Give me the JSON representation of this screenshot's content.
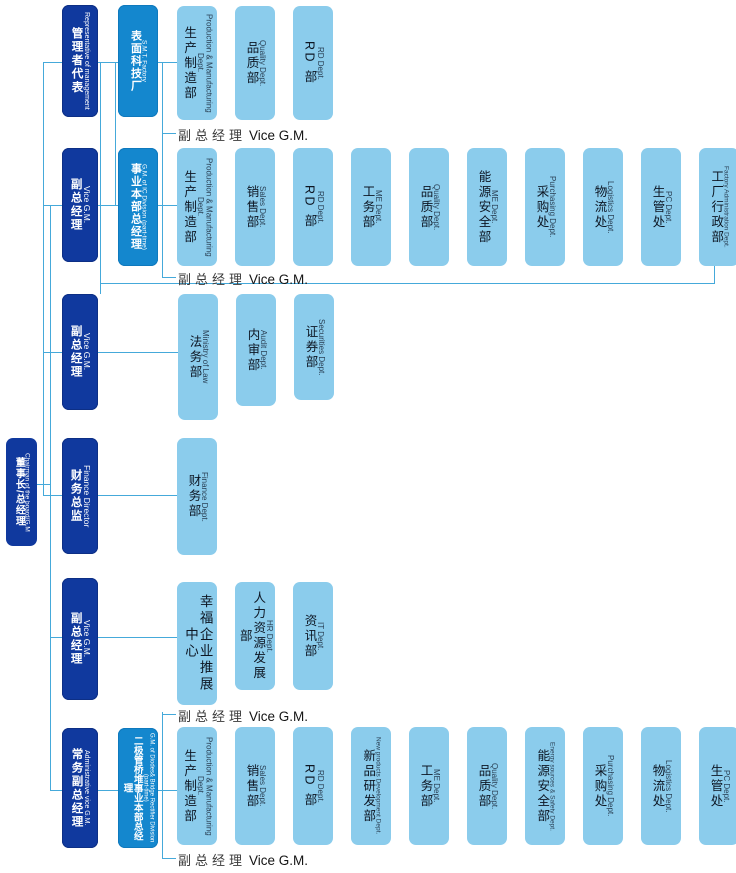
{
  "chairman": {
    "en": "Chairman of the board/G.M",
    "zh": "董事长/总经理"
  },
  "vice_gm_label": {
    "zh": "副总经理",
    "en": "Vice G.M."
  },
  "sections": [
    {
      "executive": {
        "en": "Representative of management",
        "zh": "管理者代表"
      },
      "division": {
        "en": "S.M.T. Factory",
        "zh": "表面科技厂"
      },
      "departments": [
        {
          "en": "Production & Manufacturing Dept.",
          "zh": "生产制造部"
        },
        {
          "en": "Quality Dept.",
          "zh": "品质部"
        },
        {
          "en": "RD Dept.",
          "zh": "RD 部"
        }
      ]
    },
    {
      "executive": {
        "en": "Vice G.M.",
        "zh": "副总经理"
      },
      "division": {
        "en": "G.M. of IC Division (part-time)",
        "zh": "事业本部总经理"
      },
      "departments": [
        {
          "en": "Production & Manufacturing Dept.",
          "zh": "生产制造部"
        },
        {
          "en": "Sales Dept.",
          "zh": "销售部"
        },
        {
          "en": "RD Dept.",
          "zh": "RD 部"
        },
        {
          "en": "ME Dept.",
          "zh": "工务部"
        },
        {
          "en": "Quality Dept.",
          "zh": "品质部"
        },
        {
          "en": "ME Dept.",
          "zh": "能源安全部"
        },
        {
          "en": "Purchasing Dept.",
          "zh": "采购处"
        },
        {
          "en": "Logistics Dept.",
          "zh": "物流处"
        },
        {
          "en": "PC Dept.",
          "zh": "生管处"
        },
        {
          "en": "Factory Administration Dept.",
          "zh": "工厂行政部"
        }
      ]
    },
    {
      "executive": {
        "en": "Vice G.M.",
        "zh": "副总经理"
      },
      "departments": [
        {
          "en": "Ministry of Law",
          "zh": "法务部"
        },
        {
          "en": "Audit Dept.",
          "zh": "内审部"
        },
        {
          "en": "Securities Dept.",
          "zh": "证券部"
        }
      ]
    },
    {
      "executive": {
        "en": "Finance Director",
        "zh": "财务总监"
      },
      "departments": [
        {
          "en": "Finance Dept.",
          "zh": "财务部"
        }
      ]
    },
    {
      "executive": {
        "en": "Vice G.M.",
        "zh": "副总经理"
      },
      "departments": [
        {
          "en": "",
          "zh": "幸福企业推展中心"
        },
        {
          "en": "HR Dept.",
          "zh": "人力资源发展部"
        },
        {
          "en": "IT Dept.",
          "zh": "资讯部"
        }
      ]
    },
    {
      "executive": {
        "en": "Administrative vice G.M.",
        "zh": "常务副总经理"
      },
      "division": {
        "en": "G.M. of Diodes& Bridge Rectifier Division (part-time)",
        "zh": "二极管桥堆事业本部总经理"
      },
      "departments": [
        {
          "en": "Production & Manufacturing Dept.",
          "zh": "生产制造部"
        },
        {
          "en": "Sales Dept.",
          "zh": "销售部"
        },
        {
          "en": "RD Dept.",
          "zh": "RD 部"
        },
        {
          "en": "New products Development Dept.",
          "zh": "新品研发部"
        },
        {
          "en": "ME Dept.",
          "zh": "工务部"
        },
        {
          "en": "Quality Dept.",
          "zh": "品质部"
        },
        {
          "en": "Energy sources & Safety Dept.",
          "zh": "能源安全部"
        },
        {
          "en": "Purchasing Dept.",
          "zh": "采购处"
        },
        {
          "en": "Logistics Dept.",
          "zh": "物流处"
        },
        {
          "en": "PC Dept.",
          "zh": "生管处"
        }
      ]
    }
  ],
  "colors": {
    "executive": "#10399e",
    "division": "#1487ce",
    "department": "#8bccec",
    "connector": "#45a9da",
    "background": "#ffffff"
  }
}
